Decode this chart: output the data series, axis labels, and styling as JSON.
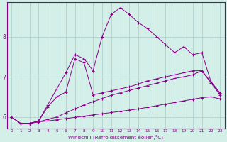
{
  "xlabel": "Windchill (Refroidissement éolien,°C)",
  "bg_color": "#d4eee8",
  "line_color": "#880088",
  "grid_color": "#aacccc",
  "xlim": [
    -0.5,
    23.5
  ],
  "ylim": [
    5.72,
    8.85
  ],
  "xticks": [
    0,
    1,
    2,
    3,
    4,
    5,
    6,
    7,
    8,
    9,
    10,
    11,
    12,
    13,
    14,
    15,
    16,
    17,
    18,
    19,
    20,
    21,
    22,
    23
  ],
  "yticks": [
    6,
    7,
    8
  ],
  "lines": [
    {
      "x": [
        0,
        1,
        2,
        3,
        4,
        5,
        6,
        7,
        8,
        9,
        10,
        11,
        12,
        13,
        14,
        15,
        16,
        17,
        18,
        19,
        20,
        21,
        22,
        23
      ],
      "y": [
        6.0,
        5.84,
        5.84,
        5.9,
        6.3,
        6.7,
        7.1,
        7.55,
        7.45,
        7.15,
        8.0,
        8.55,
        8.72,
        8.55,
        8.35,
        8.2,
        8.0,
        7.8,
        7.6,
        7.75,
        7.55,
        7.6,
        6.88,
        6.58
      ]
    },
    {
      "x": [
        0,
        1,
        2,
        3,
        4,
        5,
        6,
        7,
        8,
        9,
        10,
        11,
        12,
        13,
        14,
        15,
        16,
        17,
        18,
        19,
        20,
        21,
        22,
        23
      ],
      "y": [
        6.0,
        5.84,
        5.84,
        5.9,
        6.25,
        6.5,
        6.62,
        7.45,
        7.35,
        6.55,
        6.6,
        6.65,
        6.7,
        6.75,
        6.82,
        6.9,
        6.95,
        7.0,
        7.05,
        7.1,
        7.15,
        7.15,
        6.85,
        6.55
      ]
    },
    {
      "x": [
        0,
        1,
        2,
        3,
        4,
        5,
        6,
        7,
        8,
        9,
        10,
        11,
        12,
        13,
        14,
        15,
        16,
        17,
        18,
        19,
        20,
        21,
        22,
        23
      ],
      "y": [
        6.0,
        5.84,
        5.84,
        5.88,
        5.94,
        6.0,
        6.1,
        6.2,
        6.3,
        6.38,
        6.46,
        6.54,
        6.6,
        6.66,
        6.72,
        6.78,
        6.84,
        6.9,
        6.96,
        7.0,
        7.05,
        7.15,
        6.88,
        6.6
      ]
    },
    {
      "x": [
        0,
        1,
        2,
        3,
        4,
        5,
        6,
        7,
        8,
        9,
        10,
        11,
        12,
        13,
        14,
        15,
        16,
        17,
        18,
        19,
        20,
        21,
        22,
        23
      ],
      "y": [
        6.0,
        5.84,
        5.84,
        5.88,
        5.9,
        5.93,
        5.96,
        5.99,
        6.02,
        6.05,
        6.08,
        6.11,
        6.14,
        6.17,
        6.2,
        6.24,
        6.28,
        6.32,
        6.36,
        6.4,
        6.44,
        6.48,
        6.5,
        6.45
      ]
    }
  ]
}
